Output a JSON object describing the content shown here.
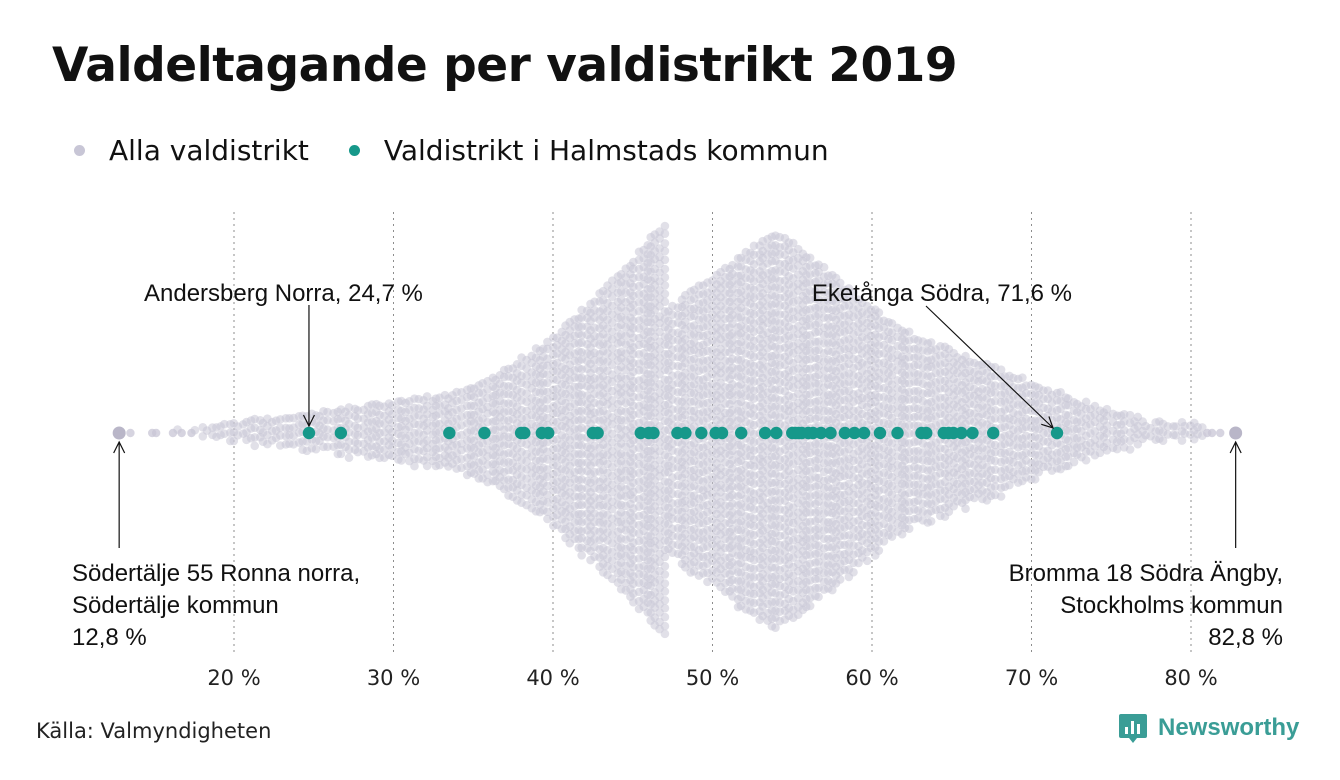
{
  "chart_data": {
    "type": "scatter",
    "subtype": "beeswarm",
    "title": "Valdeltagande per valdistrikt 2019",
    "xlabel": "",
    "ylabel": "",
    "xlim": [
      12,
      84
    ],
    "x_ticks": [
      20,
      30,
      40,
      50,
      60,
      70,
      80
    ],
    "x_tick_labels": [
      "20 %",
      "30 %",
      "40 %",
      "50 %",
      "60 %",
      "70 %",
      "80 %"
    ],
    "grid": "vertical dotted lines at x ticks",
    "legend_position": "top-left",
    "series": [
      {
        "name": "Alla valdistrikt",
        "color": "#c8c6d6",
        "approx_distribution_center": 54,
        "min": 12.8,
        "max": 82.8
      },
      {
        "name": "Valdistrikt i Halmstads kommun",
        "color": "#16988a",
        "values": [
          24.7,
          26.7,
          33.5,
          35.7,
          38.0,
          38.2,
          39.3,
          39.7,
          42.5,
          42.8,
          45.5,
          46.0,
          46.3,
          47.8,
          48.3,
          49.3,
          50.2,
          50.6,
          51.8,
          53.3,
          54.0,
          55.0,
          55.2,
          55.4,
          55.6,
          56.0,
          56.3,
          56.8,
          57.4,
          58.3,
          58.9,
          59.5,
          60.5,
          61.6,
          63.1,
          63.4,
          64.5,
          64.8,
          65.1,
          65.6,
          66.3,
          67.6,
          71.6
        ]
      }
    ],
    "annotations": [
      {
        "text": "Andersberg Norra, 24,7 %",
        "x": 24.7,
        "lines": [
          "Andersberg Norra, 24,7 %"
        ]
      },
      {
        "text": "Eketånga Södra, 71,6 %",
        "x": 71.6,
        "lines": [
          "Eketånga Södra, 71,6 %"
        ]
      },
      {
        "text": "Södertälje 55 Ronna norra, Södertälje kommun 12,8 %",
        "x": 12.8,
        "lines": [
          "Södertälje 55 Ronna norra,",
          "Södertälje kommun",
          "12,8 %"
        ]
      },
      {
        "text": "Bromma 18 Södra Ängby, Stockholms kommun 82,8 %",
        "x": 82.8,
        "lines": [
          "Bromma 18 Södra Ängby,",
          "Stockholms kommun",
          "82,8 %"
        ]
      }
    ]
  },
  "legend": [
    {
      "label": "Alla valdistrikt",
      "color": "#c8c6d6"
    },
    {
      "label": "Valdistrikt i Halmstads kommun",
      "color": "#16988a"
    }
  ],
  "source": "Källa: Valmyndigheten",
  "brand": {
    "label": "Newsworthy",
    "color": "#3a9d96"
  }
}
